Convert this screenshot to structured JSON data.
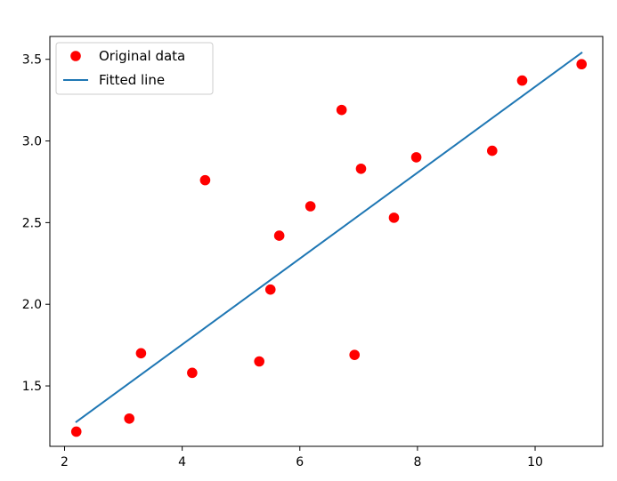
{
  "chart_data": {
    "type": "scatter",
    "title": "",
    "xlabel": "",
    "ylabel": "",
    "xlim": [
      1.75,
      11.15
    ],
    "ylim": [
      1.13,
      3.64
    ],
    "xticks": [
      2,
      4,
      6,
      8,
      10
    ],
    "yticks": [
      1.5,
      2.0,
      2.5,
      3.0,
      3.5
    ],
    "xtick_labels": [
      "2",
      "4",
      "6",
      "8",
      "10"
    ],
    "ytick_labels": [
      "1.5",
      "2.0",
      "2.5",
      "3.0",
      "3.5"
    ],
    "grid": false,
    "legend_position": "top-left",
    "series": [
      {
        "name": "Original data",
        "kind": "points",
        "color": "#ff0000",
        "x": [
          2.2,
          3.1,
          3.3,
          4.17,
          4.39,
          5.31,
          5.5,
          5.65,
          6.18,
          6.71,
          6.93,
          7.04,
          7.6,
          7.98,
          9.27,
          9.78,
          10.79
        ],
        "y": [
          1.22,
          1.3,
          1.7,
          1.58,
          2.76,
          1.65,
          2.09,
          2.42,
          2.6,
          3.19,
          1.69,
          2.83,
          2.53,
          2.9,
          2.94,
          3.37,
          3.47
        ]
      },
      {
        "name": "Fitted line",
        "kind": "line",
        "color": "#1f77b4",
        "x": [
          2.2,
          10.79
        ],
        "y": [
          1.28,
          3.54
        ]
      }
    ]
  }
}
